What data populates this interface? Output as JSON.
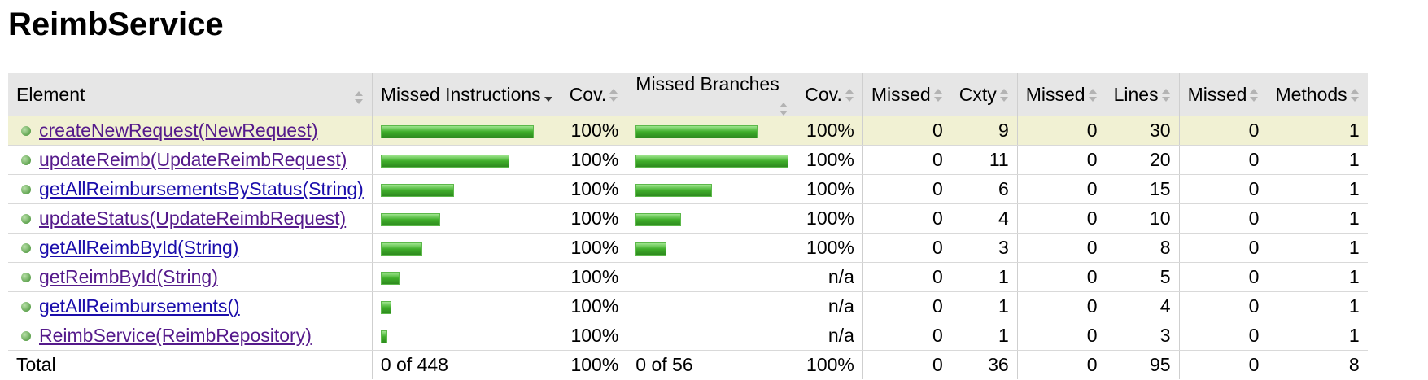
{
  "page": {
    "title": "ReimbService"
  },
  "headers": {
    "element": "Element",
    "missed_instructions": "Missed Instructions",
    "cov1": "Cov.",
    "missed_branches": "Missed Branches",
    "cov2": "Cov.",
    "missed_cxty": "Missed",
    "cxty": "Cxty",
    "missed_lines": "Missed",
    "lines": "Lines",
    "missed_methods": "Missed",
    "methods": "Methods"
  },
  "rows": [
    {
      "name": "createNewRequest(NewRequest)",
      "visited": true,
      "highlight": true,
      "instr_fraction": 1.0,
      "instr_cov": "100%",
      "branch_fraction": 0.8,
      "branch_cov": "100%",
      "missed_cxty": "0",
      "cxty": "9",
      "missed_lines": "0",
      "lines": "30",
      "missed_methods": "0",
      "methods": "1"
    },
    {
      "name": "updateReimb(UpdateReimbRequest)",
      "visited": true,
      "highlight": false,
      "instr_fraction": 0.84,
      "instr_cov": "100%",
      "branch_fraction": 1.0,
      "branch_cov": "100%",
      "missed_cxty": "0",
      "cxty": "11",
      "missed_lines": "0",
      "lines": "20",
      "missed_methods": "0",
      "methods": "1"
    },
    {
      "name": "getAllReimbursementsByStatus(String)",
      "visited": false,
      "highlight": false,
      "instr_fraction": 0.48,
      "instr_cov": "100%",
      "branch_fraction": 0.5,
      "branch_cov": "100%",
      "missed_cxty": "0",
      "cxty": "6",
      "missed_lines": "0",
      "lines": "15",
      "missed_methods": "0",
      "methods": "1"
    },
    {
      "name": "updateStatus(UpdateReimbRequest)",
      "visited": true,
      "highlight": false,
      "instr_fraction": 0.39,
      "instr_cov": "100%",
      "branch_fraction": 0.3,
      "branch_cov": "100%",
      "missed_cxty": "0",
      "cxty": "4",
      "missed_lines": "0",
      "lines": "10",
      "missed_methods": "0",
      "methods": "1"
    },
    {
      "name": "getAllReimbById(String)",
      "visited": false,
      "highlight": false,
      "instr_fraction": 0.27,
      "instr_cov": "100%",
      "branch_fraction": 0.2,
      "branch_cov": "100%",
      "missed_cxty": "0",
      "cxty": "3",
      "missed_lines": "0",
      "lines": "8",
      "missed_methods": "0",
      "methods": "1"
    },
    {
      "name": "getReimbById(String)",
      "visited": true,
      "highlight": false,
      "instr_fraction": 0.12,
      "instr_cov": "100%",
      "branch_fraction": 0,
      "branch_cov": "n/a",
      "missed_cxty": "0",
      "cxty": "1",
      "missed_lines": "0",
      "lines": "5",
      "missed_methods": "0",
      "methods": "1"
    },
    {
      "name": "getAllReimbursements()",
      "visited": false,
      "highlight": false,
      "instr_fraction": 0.07,
      "instr_cov": "100%",
      "branch_fraction": 0,
      "branch_cov": "n/a",
      "missed_cxty": "0",
      "cxty": "1",
      "missed_lines": "0",
      "lines": "4",
      "missed_methods": "0",
      "methods": "1"
    },
    {
      "name": "ReimbService(ReimbRepository)",
      "visited": true,
      "highlight": false,
      "instr_fraction": 0.04,
      "instr_cov": "100%",
      "branch_fraction": 0,
      "branch_cov": "n/a",
      "missed_cxty": "0",
      "cxty": "1",
      "missed_lines": "0",
      "lines": "3",
      "missed_methods": "0",
      "methods": "1"
    }
  ],
  "total": {
    "label": "Total",
    "missed_instructions": "0 of 448",
    "instr_cov": "100%",
    "missed_branches": "0 of 56",
    "branch_cov": "100%",
    "missed_cxty": "0",
    "cxty": "36",
    "missed_lines": "0",
    "lines": "95",
    "missed_methods": "0",
    "methods": "8"
  },
  "colors": {
    "bar": "#3fae2a",
    "header_bg": "#e6e6e6",
    "highlight_bg": "#f1f1d3",
    "link": "#1a0dab",
    "visited": "#551a8b"
  }
}
